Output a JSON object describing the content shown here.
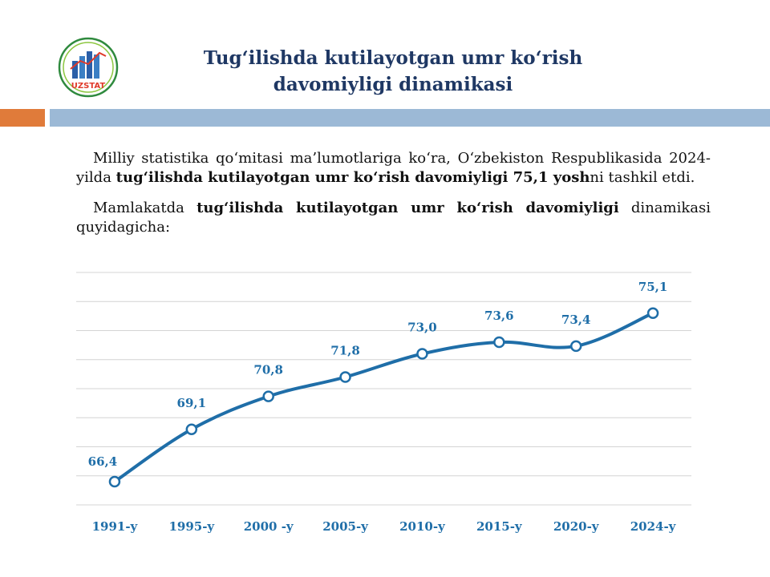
{
  "logo": {
    "text": "UZSTAT",
    "ring_color": "#2f8a3e",
    "bar_color": "#2b5fa8",
    "text_color": "#e03a2a"
  },
  "title": "Tug‘ilishda kutilayotgan umr ko‘rish davomiyligi dinamikasi",
  "colors": {
    "title": "#1f3864",
    "accent_orange": "#e07b3a",
    "accent_blue": "#9cb9d6",
    "series": "#1f6ea8"
  },
  "paragraph1": {
    "part1": "Milliy statistika qo‘mitasi ma’lumotlariga ko‘ra, O‘zbekiston Respublikasida 2024-yilda ",
    "bold": "tug‘ilishda kutilayotgan umr ko‘rish davomiyligi 75,1 yosh",
    "part2": "ni tashkil etdi."
  },
  "paragraph2": {
    "part1": "Mamlakatda ",
    "bold": "tug‘ilishda kutilayotgan umr ko‘rish davomiyligi",
    "part2": " dinamikasi quyidagicha:"
  },
  "chart_data": {
    "type": "line",
    "title": "",
    "xlabel": "",
    "ylabel": "",
    "categories": [
      "1991-y",
      "1995-y",
      "2000 -y",
      "2005-y",
      "2010-y",
      "2015-y",
      "2020-y",
      "2024-y"
    ],
    "series": [
      {
        "name": "Tug‘ilishda kutilayotgan umr ko‘rish davomiyligi",
        "values": [
          66.4,
          69.1,
          70.8,
          71.8,
          73.0,
          73.6,
          73.4,
          75.1
        ],
        "labels": [
          "66,4",
          "69,1",
          "70,8",
          "71,8",
          "73,0",
          "73,6",
          "73,4",
          "75,1"
        ]
      }
    ],
    "ylim": [
      65.2,
      77.2
    ],
    "grid": true,
    "legend": "none"
  }
}
